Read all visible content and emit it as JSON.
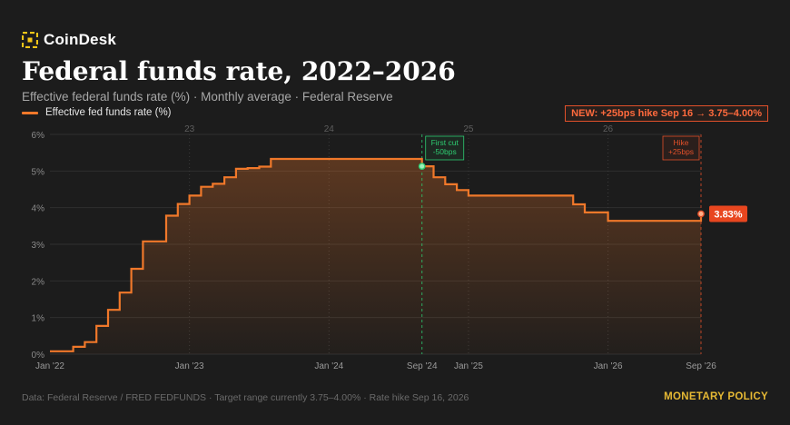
{
  "brand": {
    "name": "CoinDesk",
    "logo_icon": "coindesk-logo-icon",
    "accent": "#f5c518"
  },
  "header": {
    "title": "Federal funds rate, 2022–2026",
    "subtitle": "Effective federal funds rate (%) · Monthly average · Federal Reserve",
    "legend_label": "Effective fed funds rate (%)",
    "news_badge": "NEW: +25bps hike Sep 16 → 3.75–4.00%"
  },
  "footer": {
    "source": "Data: Federal Reserve / FRED FEDFUNDS · Target range currently 3.75–4.00% · Rate hike Sep 16, 2026",
    "tag": "MONETARY POLICY"
  },
  "colors": {
    "background": "#1c1c1c",
    "line": "#f0782a",
    "grid": "#2f2f2f",
    "cut_marker": "#2ecc71",
    "hike_marker": "#e2502a",
    "value_badge": "#e8461f",
    "tag": "#e6b934"
  },
  "chart_data": {
    "type": "area",
    "title": "Federal funds rate, 2022–2026",
    "series": [
      {
        "name": "Effective fed funds rate (%)",
        "step": true,
        "x": [
          "2022-01",
          "2022-02",
          "2022-03",
          "2022-04",
          "2022-05",
          "2022-06",
          "2022-07",
          "2022-08",
          "2022-09",
          "2022-10",
          "2022-11",
          "2022-12",
          "2023-01",
          "2023-02",
          "2023-03",
          "2023-04",
          "2023-05",
          "2023-06",
          "2023-07",
          "2023-08",
          "2023-09",
          "2023-10",
          "2023-11",
          "2023-12",
          "2024-01",
          "2024-02",
          "2024-03",
          "2024-04",
          "2024-05",
          "2024-06",
          "2024-07",
          "2024-08",
          "2024-09",
          "2024-10",
          "2024-11",
          "2024-12",
          "2025-01",
          "2025-02",
          "2025-03",
          "2025-04",
          "2025-05",
          "2025-06",
          "2025-07",
          "2025-08",
          "2025-09",
          "2025-10",
          "2025-11",
          "2025-12",
          "2026-01",
          "2026-02",
          "2026-03",
          "2026-04",
          "2026-05",
          "2026-06",
          "2026-07",
          "2026-08",
          "2026-09"
        ],
        "values": [
          0.08,
          0.08,
          0.2,
          0.33,
          0.77,
          1.21,
          1.68,
          2.33,
          3.08,
          3.08,
          3.78,
          4.1,
          4.33,
          4.57,
          4.65,
          4.83,
          5.06,
          5.08,
          5.12,
          5.33,
          5.33,
          5.33,
          5.33,
          5.33,
          5.33,
          5.33,
          5.33,
          5.33,
          5.33,
          5.33,
          5.33,
          5.33,
          5.13,
          4.83,
          4.64,
          4.48,
          4.33,
          4.33,
          4.33,
          4.33,
          4.33,
          4.33,
          4.33,
          4.33,
          4.33,
          4.09,
          3.87,
          3.87,
          3.64,
          3.64,
          3.64,
          3.64,
          3.64,
          3.64,
          3.64,
          3.64,
          3.83
        ]
      }
    ],
    "ylim": [
      0,
      6
    ],
    "y_ticks": [
      "0%",
      "1%",
      "2%",
      "3%",
      "4%",
      "5%",
      "6%"
    ],
    "x_ticks": [
      {
        "date": "2022-01",
        "label": "Jan '22"
      },
      {
        "date": "2023-01",
        "label": "Jan '23"
      },
      {
        "date": "2024-01",
        "label": "Jan '24"
      },
      {
        "date": "2024-09",
        "label": "Sep '24"
      },
      {
        "date": "2025-01",
        "label": "Jan '25"
      },
      {
        "date": "2026-01",
        "label": "Jan '26"
      },
      {
        "date": "2026-09",
        "label": "Sep '26"
      }
    ],
    "year_marks": [
      {
        "date": "2023-01",
        "label": "23"
      },
      {
        "date": "2024-01",
        "label": "24"
      },
      {
        "date": "2025-01",
        "label": "25"
      },
      {
        "date": "2026-01",
        "label": "26"
      }
    ],
    "annotations": [
      {
        "date": "2024-09",
        "y": 5.13,
        "lines": [
          "First cut",
          "-50bps"
        ],
        "kind": "cut"
      },
      {
        "date": "2026-09",
        "y": 3.83,
        "lines": [
          "Hike",
          "+25bps"
        ],
        "kind": "hike"
      }
    ],
    "last_value_label": "3.83%",
    "grid": true,
    "legend": "top-left"
  }
}
